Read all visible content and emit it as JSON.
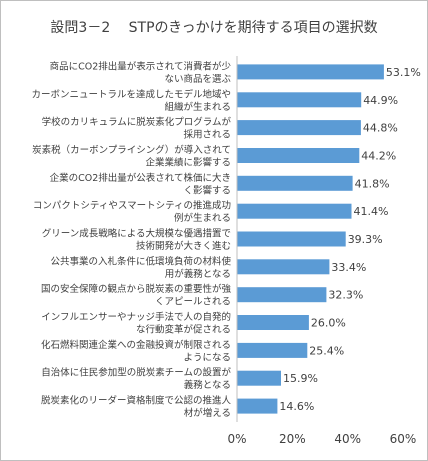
{
  "chart_data": {
    "type": "bar",
    "orientation": "horizontal",
    "title": "設問3－2　 STPのきっかけを期待する項目の選択数",
    "categories": [
      [
        "商品にCO2排出量が表示されて消費者が少",
        "ない商品を選ぶ"
      ],
      [
        "カーボンニュートラルを達成したモデル地域や",
        "組織が生まれる"
      ],
      [
        "学校のカリキュラムに脱炭素化プログラムが",
        "採用される"
      ],
      [
        "炭素税（カーボンプライシング）が導入されて",
        "企業業績に影響する"
      ],
      [
        "企業のCO2排出量が公表されて株価に大き",
        "く影響する"
      ],
      [
        "コンパクトシティやスマートシティの推進成功",
        "例が生まれる"
      ],
      [
        "グリーン成長戦略による大規模な優遇措置で",
        "技術開発が大きく進む"
      ],
      [
        "公共事業の入札条件に低環境負荷の材料使",
        "用が義務となる"
      ],
      [
        "国の安全保障の観点から脱炭素の重要性が強",
        "くアピールされる"
      ],
      [
        "インフルエンサーやナッジ手法で人の自発的",
        "な行動変革が促される"
      ],
      [
        "化石燃料関連企業への金融投資が制限される",
        "ようになる"
      ],
      [
        "自治体に住民参加型の脱炭素チームの設置が",
        "義務となる"
      ],
      [
        "脱炭素化のリーダー資格制度で公認の推進人",
        "材が増える"
      ]
    ],
    "values": [
      53.1,
      44.9,
      44.8,
      44.2,
      41.8,
      41.4,
      39.3,
      33.4,
      32.3,
      26.0,
      25.4,
      15.9,
      14.6
    ],
    "value_labels": [
      "53.1%",
      "44.9%",
      "44.8%",
      "44.2%",
      "41.8%",
      "41.4%",
      "39.3%",
      "33.4%",
      "32.3%",
      "26.0%",
      "25.4%",
      "15.9%",
      "14.6%"
    ],
    "xlim": [
      0,
      60
    ],
    "x_ticks": [
      0,
      20,
      40,
      60
    ],
    "x_tick_labels": [
      "0%",
      "20%",
      "40%",
      "60%"
    ],
    "grid": false,
    "bar_color": "#5b9bd5",
    "axis_color": "#bfbfbf",
    "text_color": "#404040"
  }
}
